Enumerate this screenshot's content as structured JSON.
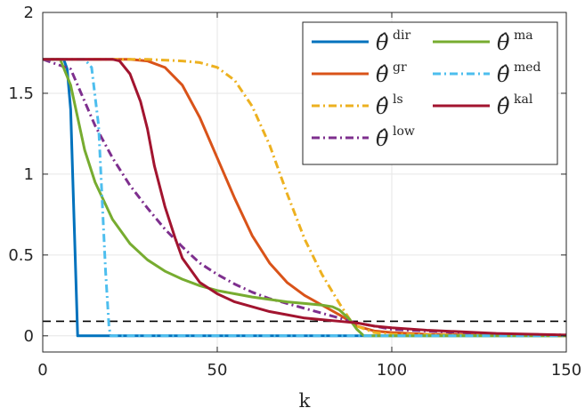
{
  "chart_data": {
    "type": "line",
    "xlabel": "k",
    "ylabel": "",
    "xlim": [
      0,
      150
    ],
    "ylim": [
      -0.1,
      2
    ],
    "xticks": [
      0,
      50,
      100,
      150
    ],
    "yticks": [
      0,
      0.5,
      1,
      1.5,
      2
    ],
    "xtick_labels": [
      "0",
      "50",
      "100",
      "150"
    ],
    "ytick_labels": [
      "0",
      "0.5",
      "1",
      "1.5",
      "2"
    ],
    "grid": true,
    "legend_position": "top-right",
    "reference_line": {
      "y": 0.09,
      "style": "dashed",
      "color": "#000000"
    },
    "series": [
      {
        "name": "dir",
        "color": "#0072BD",
        "dash": "solid",
        "points": [
          [
            0,
            1.71
          ],
          [
            6,
            1.71
          ],
          [
            7,
            1.65
          ],
          [
            8,
            1.4
          ],
          [
            9,
            0.7
          ],
          [
            10,
            0.0
          ],
          [
            150,
            0.0
          ]
        ]
      },
      {
        "name": "gr",
        "color": "#D95319",
        "dash": "solid",
        "points": [
          [
            0,
            1.71
          ],
          [
            25,
            1.71
          ],
          [
            30,
            1.7
          ],
          [
            35,
            1.66
          ],
          [
            40,
            1.55
          ],
          [
            45,
            1.35
          ],
          [
            50,
            1.1
          ],
          [
            55,
            0.85
          ],
          [
            60,
            0.62
          ],
          [
            65,
            0.45
          ],
          [
            70,
            0.33
          ],
          [
            75,
            0.25
          ],
          [
            80,
            0.19
          ],
          [
            85,
            0.13
          ],
          [
            88,
            0.09
          ],
          [
            90,
            0.06
          ],
          [
            95,
            0.03
          ],
          [
            100,
            0.02
          ],
          [
            110,
            0.01
          ],
          [
            130,
            0.005
          ],
          [
            150,
            0.0
          ]
        ]
      },
      {
        "name": "ls",
        "color": "#EDB120",
        "dash": "dashdot",
        "points": [
          [
            0,
            1.71
          ],
          [
            30,
            1.71
          ],
          [
            40,
            1.7
          ],
          [
            45,
            1.69
          ],
          [
            50,
            1.66
          ],
          [
            55,
            1.58
          ],
          [
            60,
            1.42
          ],
          [
            65,
            1.18
          ],
          [
            70,
            0.88
          ],
          [
            75,
            0.6
          ],
          [
            80,
            0.38
          ],
          [
            85,
            0.2
          ],
          [
            88,
            0.1
          ],
          [
            90,
            0.06
          ],
          [
            95,
            0.02
          ],
          [
            100,
            0.01
          ],
          [
            120,
            0.005
          ],
          [
            150,
            0.0
          ]
        ]
      },
      {
        "name": "low",
        "color": "#7E2F8E",
        "dash": "dashdot",
        "points": [
          [
            0,
            1.71
          ],
          [
            8,
            1.65
          ],
          [
            10,
            1.55
          ],
          [
            15,
            1.3
          ],
          [
            20,
            1.1
          ],
          [
            25,
            0.93
          ],
          [
            30,
            0.79
          ],
          [
            35,
            0.66
          ],
          [
            40,
            0.55
          ],
          [
            45,
            0.45
          ],
          [
            50,
            0.38
          ],
          [
            55,
            0.32
          ],
          [
            60,
            0.27
          ],
          [
            65,
            0.23
          ],
          [
            70,
            0.2
          ],
          [
            75,
            0.17
          ],
          [
            80,
            0.14
          ],
          [
            85,
            0.11
          ],
          [
            88,
            0.09
          ],
          [
            90,
            0.08
          ],
          [
            95,
            0.06
          ],
          [
            100,
            0.04
          ],
          [
            110,
            0.03
          ],
          [
            120,
            0.02
          ],
          [
            135,
            0.01
          ],
          [
            150,
            0.005
          ]
        ]
      },
      {
        "name": "ma",
        "color": "#77AC30",
        "dash": "solid",
        "points": [
          [
            0,
            1.71
          ],
          [
            5,
            1.71
          ],
          [
            8,
            1.55
          ],
          [
            10,
            1.35
          ],
          [
            12,
            1.15
          ],
          [
            15,
            0.95
          ],
          [
            20,
            0.72
          ],
          [
            25,
            0.57
          ],
          [
            30,
            0.47
          ],
          [
            35,
            0.4
          ],
          [
            40,
            0.35
          ],
          [
            45,
            0.31
          ],
          [
            50,
            0.28
          ],
          [
            55,
            0.26
          ],
          [
            60,
            0.24
          ],
          [
            65,
            0.225
          ],
          [
            70,
            0.21
          ],
          [
            75,
            0.2
          ],
          [
            80,
            0.19
          ],
          [
            83,
            0.18
          ],
          [
            85,
            0.16
          ],
          [
            88,
            0.1
          ],
          [
            90,
            0.04
          ],
          [
            92,
            0.0
          ],
          [
            150,
            0.0
          ]
        ]
      },
      {
        "name": "med",
        "color": "#4DBEEE",
        "dash": "dashdot",
        "points": [
          [
            0,
            1.71
          ],
          [
            12,
            1.71
          ],
          [
            14,
            1.66
          ],
          [
            16,
            1.3
          ],
          [
            17,
            0.85
          ],
          [
            18,
            0.4
          ],
          [
            19,
            0.05
          ],
          [
            19.5,
            0.0
          ],
          [
            150,
            0.0
          ]
        ]
      },
      {
        "name": "kal",
        "color": "#A2142F",
        "dash": "solid",
        "points": [
          [
            0,
            1.71
          ],
          [
            20,
            1.71
          ],
          [
            22,
            1.7
          ],
          [
            25,
            1.62
          ],
          [
            28,
            1.45
          ],
          [
            30,
            1.28
          ],
          [
            32,
            1.05
          ],
          [
            35,
            0.8
          ],
          [
            38,
            0.6
          ],
          [
            40,
            0.48
          ],
          [
            45,
            0.33
          ],
          [
            50,
            0.26
          ],
          [
            55,
            0.21
          ],
          [
            60,
            0.18
          ],
          [
            65,
            0.15
          ],
          [
            70,
            0.13
          ],
          [
            75,
            0.11
          ],
          [
            80,
            0.1
          ],
          [
            85,
            0.09
          ],
          [
            90,
            0.08
          ],
          [
            95,
            0.06
          ],
          [
            100,
            0.05
          ],
          [
            110,
            0.035
          ],
          [
            120,
            0.025
          ],
          [
            130,
            0.015
          ],
          [
            140,
            0.01
          ],
          [
            150,
            0.005
          ]
        ]
      }
    ],
    "legend": [
      {
        "symbol": "θ̂",
        "sup": "dir",
        "series": 0
      },
      {
        "symbol": "θ̂",
        "sup": "ma",
        "series": 4
      },
      {
        "symbol": "θ̂",
        "sup": "gr",
        "series": 1
      },
      {
        "symbol": "θ̂",
        "sup": "med",
        "series": 5
      },
      {
        "symbol": "θ̂",
        "sup": "ls",
        "series": 2
      },
      {
        "symbol": "θ̂",
        "sup": "kal",
        "series": 6
      },
      {
        "symbol": "θ̂",
        "sup": "low",
        "series": 3
      }
    ]
  }
}
